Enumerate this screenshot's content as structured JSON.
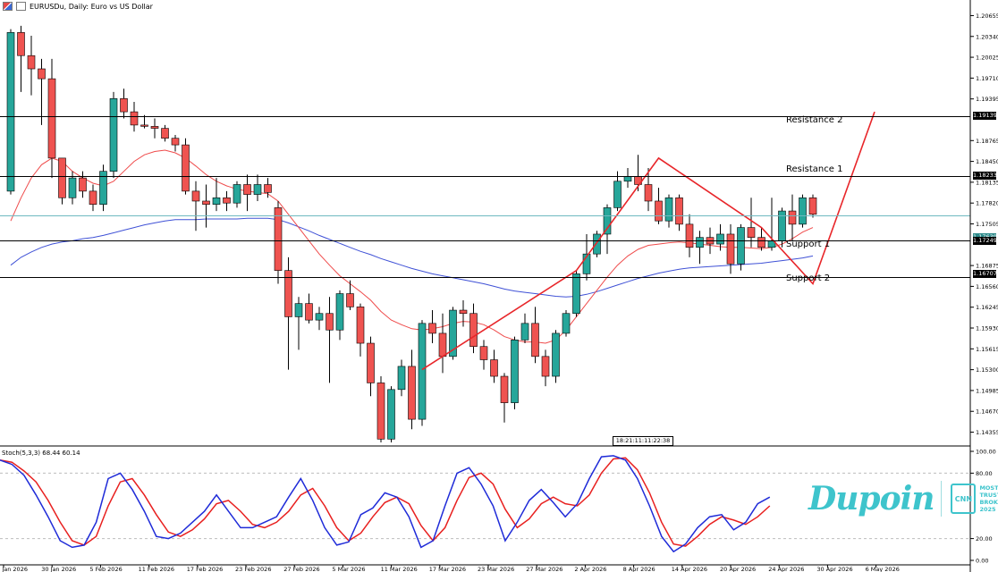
{
  "window": {
    "title": "EURUSDu, Daily:  Euro vs US Dollar",
    "stoch_label": "Stoch(5,3,3) 68.44 60.14",
    "time_box": "18:21:11:11:22:38"
  },
  "levels": {
    "resistance2": {
      "label": "Resistance 2",
      "price": "1.19139"
    },
    "resistance1": {
      "label": "Resistance 1",
      "price": "1.18233"
    },
    "current": {
      "price": "1.17639"
    },
    "support1": {
      "label": "Support 1",
      "price": "1.17249"
    },
    "support2": {
      "label": "Support 2",
      "price": "1.16707"
    }
  },
  "price_axis_ticks": [
    "1.20655",
    "1.20340",
    "1.20025",
    "1.19710",
    "1.19395",
    "1.18765",
    "1.18450",
    "1.18135",
    "1.17820",
    "1.17505",
    "1.16875",
    "1.16560",
    "1.16245",
    "1.15930",
    "1.15615",
    "1.15300",
    "1.14985",
    "1.14670",
    "1.14355"
  ],
  "stoch_axis_ticks": [
    "100.00",
    "80.00",
    "20.00",
    "0.00"
  ],
  "date_labels": [
    "26 Jan 2026",
    "30 Jan 2026",
    "5 Feb 2026",
    "11 Feb 2026",
    "17 Feb 2026",
    "23 Feb 2026",
    "27 Feb 2026",
    "5 Mar 2026",
    "11 Mar 2026",
    "17 Mar 2026",
    "23 Mar 2026",
    "27 Mar 2026",
    "2 Apr 2026",
    "8 Apr 2026",
    "14 Apr 2026",
    "20 Apr 2026",
    "24 Apr 2026",
    "30 Apr 2026",
    "6 May 2026"
  ],
  "branding": {
    "name": "Dupoin",
    "badge": "CNN",
    "award_lines": [
      "MOST",
      "TRUSTED",
      "BROKER",
      "2025"
    ]
  },
  "colors": {
    "bull": "#26a69a",
    "bear": "#ef5350",
    "ma_fast": "#ef4b4b",
    "ma_slow": "#3f51d6",
    "pattern": "#e8262a",
    "stoch_k": "#1f2bd8",
    "stoch_d": "#e8201f",
    "accent": "#3ec4cc"
  },
  "chart_data": {
    "type": "candlestick",
    "symbol": "EURUSDu",
    "timeframe": "Daily",
    "ylim": [
      1.142,
      1.2081
    ],
    "candles": [
      [
        1.18,
        1.2045,
        1.1795,
        1.204
      ],
      [
        1.204,
        1.205,
        1.195,
        1.2005
      ],
      [
        1.2005,
        1.2035,
        1.1945,
        1.1985
      ],
      [
        1.1985,
        1.2,
        1.19,
        1.197
      ],
      [
        1.197,
        1.2,
        1.182,
        1.185
      ],
      [
        1.185,
        1.185,
        1.178,
        1.179
      ],
      [
        1.179,
        1.183,
        1.178,
        1.182
      ],
      [
        1.182,
        1.183,
        1.179,
        1.18
      ],
      [
        1.18,
        1.181,
        1.177,
        1.178
      ],
      [
        1.178,
        1.184,
        1.177,
        1.183
      ],
      [
        1.183,
        1.195,
        1.182,
        1.194
      ],
      [
        1.194,
        1.1955,
        1.191,
        1.192
      ],
      [
        1.192,
        1.1935,
        1.189,
        1.19
      ],
      [
        1.19,
        1.1915,
        1.1895,
        1.1898
      ],
      [
        1.1898,
        1.191,
        1.188,
        1.1895
      ],
      [
        1.1895,
        1.19,
        1.1875,
        1.188
      ],
      [
        1.188,
        1.1885,
        1.186,
        1.187
      ],
      [
        1.187,
        1.188,
        1.1795,
        1.18
      ],
      [
        1.18,
        1.1815,
        1.174,
        1.1785
      ],
      [
        1.1785,
        1.181,
        1.1745,
        1.178
      ],
      [
        1.178,
        1.182,
        1.177,
        1.179
      ],
      [
        1.179,
        1.18,
        1.177,
        1.1782
      ],
      [
        1.1782,
        1.1815,
        1.1775,
        1.181
      ],
      [
        1.181,
        1.1825,
        1.177,
        1.1795
      ],
      [
        1.1795,
        1.1825,
        1.1785,
        1.181
      ],
      [
        1.181,
        1.182,
        1.179,
        1.1798
      ],
      [
        1.1775,
        1.1785,
        1.166,
        1.168
      ],
      [
        1.168,
        1.17,
        1.153,
        1.161
      ],
      [
        1.161,
        1.164,
        1.156,
        1.163
      ],
      [
        1.163,
        1.1645,
        1.16,
        1.1605
      ],
      [
        1.1605,
        1.1625,
        1.159,
        1.1615
      ],
      [
        1.1615,
        1.164,
        1.151,
        1.159
      ],
      [
        1.159,
        1.165,
        1.1575,
        1.1645
      ],
      [
        1.1645,
        1.1665,
        1.162,
        1.1625
      ],
      [
        1.1625,
        1.163,
        1.155,
        1.157
      ],
      [
        1.157,
        1.158,
        1.149,
        1.151
      ],
      [
        1.151,
        1.152,
        1.142,
        1.1425
      ],
      [
        1.1425,
        1.1505,
        1.142,
        1.15
      ],
      [
        1.15,
        1.1545,
        1.149,
        1.1535
      ],
      [
        1.1535,
        1.156,
        1.144,
        1.1455
      ],
      [
        1.1455,
        1.1605,
        1.1445,
        1.16
      ],
      [
        1.16,
        1.162,
        1.157,
        1.1585
      ],
      [
        1.1585,
        1.1615,
        1.1525,
        1.155
      ],
      [
        1.155,
        1.1625,
        1.1545,
        1.162
      ],
      [
        1.162,
        1.1635,
        1.1595,
        1.1615
      ],
      [
        1.1615,
        1.163,
        1.1555,
        1.1565
      ],
      [
        1.1565,
        1.1575,
        1.153,
        1.1545
      ],
      [
        1.1545,
        1.156,
        1.151,
        1.152
      ],
      [
        1.152,
        1.1525,
        1.145,
        1.148
      ],
      [
        1.148,
        1.158,
        1.147,
        1.1575
      ],
      [
        1.1575,
        1.1615,
        1.157,
        1.16
      ],
      [
        1.16,
        1.1625,
        1.154,
        1.155
      ],
      [
        1.155,
        1.156,
        1.1505,
        1.152
      ],
      [
        1.152,
        1.159,
        1.151,
        1.1585
      ],
      [
        1.1585,
        1.162,
        1.158,
        1.1615
      ],
      [
        1.1615,
        1.168,
        1.161,
        1.1675
      ],
      [
        1.1675,
        1.1735,
        1.1665,
        1.1705
      ],
      [
        1.1705,
        1.174,
        1.17,
        1.1735
      ],
      [
        1.1735,
        1.178,
        1.1705,
        1.1775
      ],
      [
        1.1775,
        1.183,
        1.177,
        1.1815
      ],
      [
        1.1815,
        1.1835,
        1.1805,
        1.1822
      ],
      [
        1.1822,
        1.1855,
        1.18,
        1.181
      ],
      [
        1.181,
        1.1835,
        1.177,
        1.1785
      ],
      [
        1.1785,
        1.1805,
        1.175,
        1.1755
      ],
      [
        1.1755,
        1.1795,
        1.1745,
        1.179
      ],
      [
        1.179,
        1.1795,
        1.174,
        1.175
      ],
      [
        1.175,
        1.1765,
        1.17,
        1.1715
      ],
      [
        1.1715,
        1.174,
        1.169,
        1.173
      ],
      [
        1.173,
        1.1745,
        1.1705,
        1.172
      ],
      [
        1.172,
        1.175,
        1.171,
        1.1735
      ],
      [
        1.1735,
        1.175,
        1.1675,
        1.169
      ],
      [
        1.169,
        1.175,
        1.168,
        1.1745
      ],
      [
        1.1745,
        1.179,
        1.1715,
        1.173
      ],
      [
        1.173,
        1.1745,
        1.171,
        1.1715
      ],
      [
        1.1715,
        1.179,
        1.171,
        1.1725
      ],
      [
        1.1725,
        1.1775,
        1.1715,
        1.177
      ],
      [
        1.177,
        1.1795,
        1.1725,
        1.175
      ],
      [
        1.175,
        1.1795,
        1.1745,
        1.179
      ],
      [
        1.179,
        1.1795,
        1.176,
        1.1765
      ]
    ],
    "ma_fast": [
      1.1755,
      1.179,
      1.182,
      1.184,
      1.185,
      1.1845,
      1.183,
      1.182,
      1.1812,
      1.1808,
      1.1815,
      1.183,
      1.1845,
      1.1855,
      1.186,
      1.1862,
      1.1858,
      1.185,
      1.1838,
      1.1825,
      1.1815,
      1.1808,
      1.1803,
      1.18,
      1.1798,
      1.1796,
      1.1785,
      1.1765,
      1.1745,
      1.1725,
      1.1705,
      1.1688,
      1.1672,
      1.166,
      1.1648,
      1.1635,
      1.1618,
      1.1605,
      1.1598,
      1.1592,
      1.159,
      1.1592,
      1.1595,
      1.16,
      1.1603,
      1.1602,
      1.1598,
      1.159,
      1.158,
      1.1575,
      1.1572,
      1.1572,
      1.157,
      1.1575,
      1.159,
      1.161,
      1.163,
      1.165,
      1.167,
      1.1688,
      1.1702,
      1.1712,
      1.1718,
      1.172,
      1.1722,
      1.1723,
      1.1722,
      1.172,
      1.1718,
      1.1716,
      1.1715,
      1.1715,
      1.1714,
      1.1713,
      1.1715,
      1.172,
      1.1728,
      1.1738,
      1.1745
    ],
    "ma_slow": [
      1.1688,
      1.17,
      1.1708,
      1.1715,
      1.172,
      1.1723,
      1.1725,
      1.1728,
      1.173,
      1.1733,
      1.1737,
      1.1741,
      1.1745,
      1.1749,
      1.1752,
      1.1755,
      1.1757,
      1.1757,
      1.1757,
      1.1758,
      1.1758,
      1.1758,
      1.1758,
      1.1759,
      1.1759,
      1.1759,
      1.1757,
      1.1752,
      1.1746,
      1.174,
      1.1733,
      1.1727,
      1.1721,
      1.1715,
      1.1709,
      1.1704,
      1.1698,
      1.1693,
      1.1688,
      1.1683,
      1.1679,
      1.1675,
      1.1672,
      1.1669,
      1.1666,
      1.1663,
      1.166,
      1.1656,
      1.1652,
      1.1649,
      1.1647,
      1.1645,
      1.1643,
      1.1641,
      1.164,
      1.1641,
      1.1644,
      1.1648,
      1.1653,
      1.1658,
      1.1663,
      1.1668,
      1.1672,
      1.1676,
      1.1679,
      1.1682,
      1.1684,
      1.1685,
      1.1686,
      1.1687,
      1.1688,
      1.1689,
      1.169,
      1.1691,
      1.1693,
      1.1695,
      1.1697,
      1.1699,
      1.1702
    ],
    "pattern_line": [
      [
        40,
        1.153
      ],
      [
        55,
        1.168
      ],
      [
        63,
        1.185
      ],
      [
        73,
        1.1745
      ],
      [
        78,
        1.166
      ],
      [
        84,
        1.192
      ]
    ],
    "stochastic": {
      "ylim": [
        0,
        100
      ],
      "k": [
        92,
        88,
        78,
        60,
        40,
        18,
        12,
        14,
        35,
        75,
        80,
        65,
        45,
        22,
        20,
        25,
        35,
        45,
        60,
        45,
        30,
        30,
        35,
        40,
        58,
        75,
        55,
        30,
        14,
        17,
        42,
        48,
        62,
        58,
        40,
        12,
        18,
        50,
        80,
        85,
        70,
        50,
        18,
        35,
        55,
        65,
        53,
        40,
        52,
        75,
        95,
        96,
        92,
        75,
        50,
        22,
        8,
        15,
        30,
        40,
        42,
        28,
        35,
        52,
        58
      ],
      "d": [
        92,
        90,
        82,
        72,
        55,
        35,
        18,
        14,
        22,
        50,
        72,
        75,
        60,
        42,
        26,
        22,
        28,
        38,
        52,
        55,
        45,
        33,
        30,
        35,
        45,
        60,
        66,
        50,
        30,
        18,
        25,
        40,
        53,
        58,
        52,
        32,
        18,
        30,
        55,
        76,
        80,
        70,
        47,
        30,
        38,
        52,
        58,
        52,
        50,
        60,
        80,
        93,
        94,
        83,
        62,
        35,
        15,
        13,
        22,
        33,
        40,
        37,
        33,
        40,
        50
      ]
    }
  }
}
